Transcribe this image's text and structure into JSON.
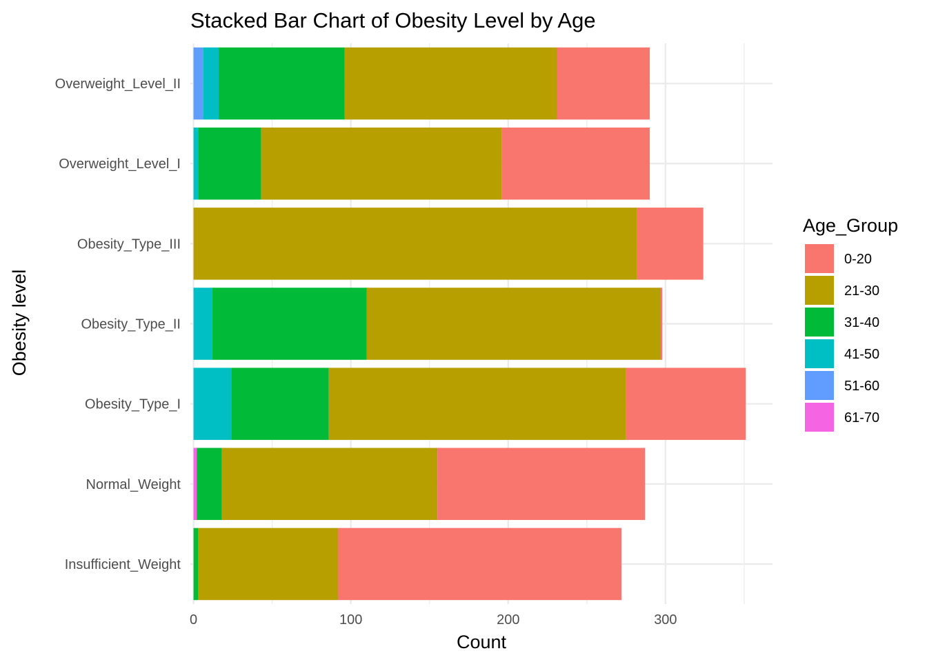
{
  "chart_data": {
    "type": "bar",
    "orientation": "horizontal",
    "stacked": true,
    "title": "Stacked Bar Chart of Obesity Level by Age",
    "xlabel": "Count",
    "ylabel": "Obesity level",
    "xlim": [
      -2,
      368
    ],
    "xticks": [
      0,
      100,
      200,
      300
    ],
    "xtick_labels": [
      "0",
      "100",
      "200",
      "300"
    ],
    "grid": true,
    "legend": {
      "title": "Age_Group",
      "placement": "right"
    },
    "categories": [
      "Insufficient_Weight",
      "Normal_Weight",
      "Obesity_Type_I",
      "Obesity_Type_II",
      "Obesity_Type_III",
      "Overweight_Level_I",
      "Overweight_Level_II"
    ],
    "series": [
      {
        "name": "61-70",
        "color": "#F564E3",
        "values": [
          0,
          2,
          0,
          0,
          0,
          0,
          0
        ]
      },
      {
        "name": "51-60",
        "color": "#619CFF",
        "values": [
          0,
          0,
          0,
          0,
          0,
          0,
          6
        ]
      },
      {
        "name": "41-50",
        "color": "#00BFC4",
        "values": [
          0,
          0,
          24,
          12,
          0,
          3,
          10
        ]
      },
      {
        "name": "31-40",
        "color": "#00BA38",
        "values": [
          3,
          16,
          62,
          98,
          0,
          40,
          80
        ]
      },
      {
        "name": "21-30",
        "color": "#B79F00",
        "values": [
          89,
          137,
          189,
          187,
          282,
          153,
          135
        ]
      },
      {
        "name": "0-20",
        "color": "#F8766D",
        "values": [
          180,
          132,
          76,
          1,
          42,
          94,
          59
        ]
      }
    ]
  }
}
